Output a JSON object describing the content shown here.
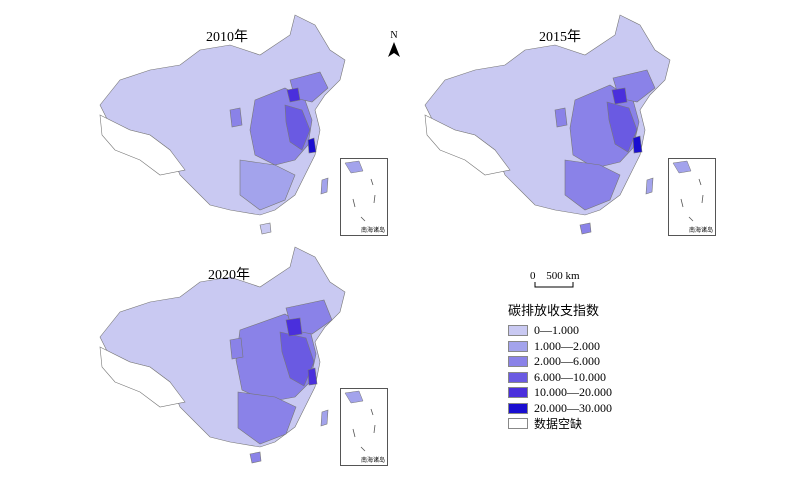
{
  "panels": [
    {
      "year": "2010年"
    },
    {
      "year": "2015年"
    },
    {
      "year": "2020年"
    }
  ],
  "north_label": "N",
  "inset_label": "南海诸岛",
  "scale": {
    "zero": "0",
    "value": "500 km"
  },
  "legend": {
    "title": "碳排放收支指数",
    "items": [
      {
        "label": "0—1.000",
        "color": "#c9c9f2"
      },
      {
        "label": "1.000—2.000",
        "color": "#a3a3ec"
      },
      {
        "label": "2.000—6.000",
        "color": "#8a82e8"
      },
      {
        "label": "6.000—10.000",
        "color": "#6a5ae2"
      },
      {
        "label": "10.000—20.000",
        "color": "#4a2fdc"
      },
      {
        "label": "20.000—30.000",
        "color": "#1a0ed0"
      },
      {
        "label": "数据空缺",
        "color": "#ffffff"
      }
    ]
  }
}
